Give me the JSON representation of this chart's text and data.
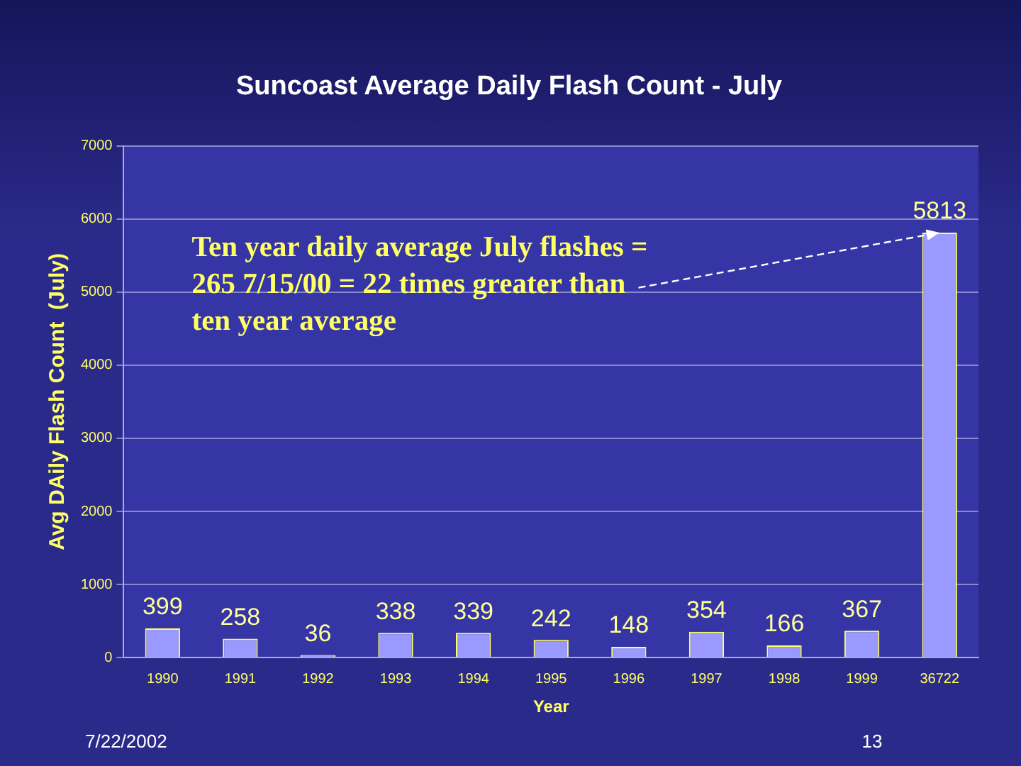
{
  "chart_data": {
    "type": "bar",
    "title": "Suncoast Average Daily Flash Count - July",
    "xlabel": "Year",
    "ylabel": "Avg DAily Flash Count  (July)",
    "categories": [
      "1990",
      "1991",
      "1992",
      "1993",
      "1994",
      "1995",
      "1996",
      "1997",
      "1998",
      "1999",
      "36722"
    ],
    "values": [
      399,
      258,
      36,
      338,
      339,
      242,
      148,
      354,
      166,
      367,
      5813
    ],
    "color": "#9999ff",
    "ylim": [
      0,
      7000
    ],
    "yticks": [
      0,
      1000,
      2000,
      3000,
      4000,
      5000,
      6000,
      7000
    ],
    "grid": "y",
    "data_labels": true,
    "legend": false,
    "annotations": [
      {
        "text": "Ten year daily average July flashes = 265 7/15/00 = 22 times greater than ten year average",
        "x": "36722",
        "y": 5813
      },
      "7/22/2002",
      "13"
    ]
  }
}
